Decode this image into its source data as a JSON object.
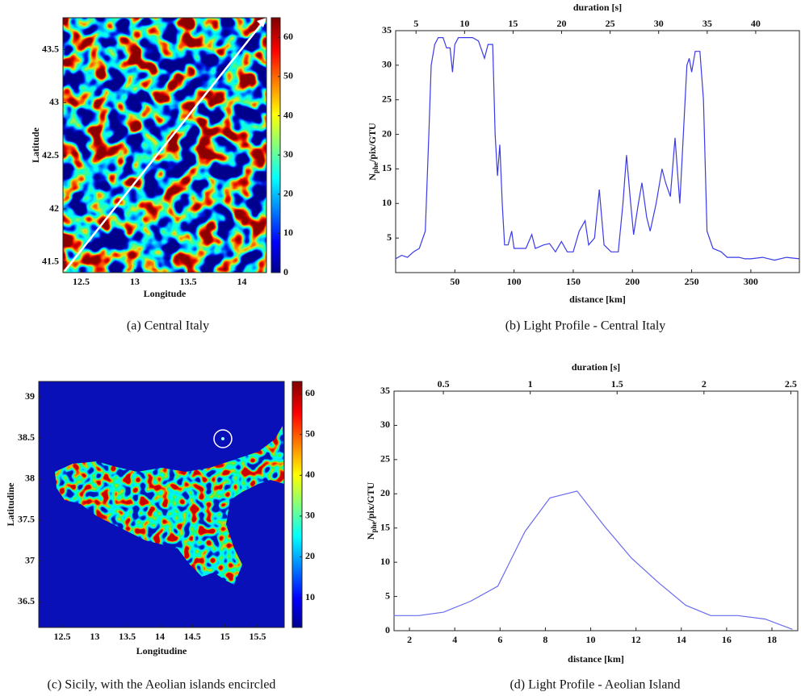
{
  "chart_data": [
    {
      "type": "heatmap",
      "caption": "(a) Central Italy",
      "xlabel": "Longitude",
      "ylabel": "Latitude",
      "xlim": [
        12.33,
        14.23
      ],
      "ylim": [
        41.4,
        43.8
      ],
      "xticks": [
        12.5,
        13,
        13.5,
        14
      ],
      "yticks": [
        41.5,
        42,
        42.5,
        43,
        43.5
      ],
      "clim": [
        0,
        65
      ],
      "cticks": [
        0,
        10,
        20,
        30,
        40,
        50,
        60
      ]
    },
    {
      "type": "line",
      "caption": "(b) Light Profile - Central Italy",
      "xlabel": "distance [km]",
      "ylabel": {
        "base": "N",
        "sub": "phe",
        "rest": "/pix/GTU"
      },
      "x2label": "duration [s]",
      "xlim": [
        0,
        341
      ],
      "ylim": [
        0,
        35
      ],
      "x2lim": [
        2.9,
        44.5
      ],
      "xticks": [
        50,
        100,
        150,
        200,
        250,
        300
      ],
      "yticks": [
        5,
        10,
        15,
        20,
        25,
        30,
        35
      ],
      "x2ticks": [
        5,
        10,
        15,
        20,
        25,
        30,
        35,
        40
      ],
      "color": "#3a3ae8",
      "x": [
        0,
        5,
        10,
        15,
        20,
        25,
        28,
        30,
        33,
        36,
        40,
        43,
        46,
        48,
        50,
        53,
        60,
        65,
        70,
        75,
        78,
        82,
        84,
        86,
        88,
        90,
        92,
        95,
        98,
        100,
        110,
        115,
        118,
        125,
        130,
        135,
        140,
        145,
        150,
        155,
        160,
        163,
        168,
        172,
        176,
        182,
        188,
        192,
        195,
        198,
        201,
        205,
        208,
        212,
        215,
        220,
        225,
        228,
        232,
        236,
        240,
        243,
        246,
        248,
        250,
        253,
        257,
        260,
        263,
        268,
        275,
        280,
        290,
        295,
        300,
        310,
        320,
        330,
        341
      ],
      "values": [
        2,
        2.5,
        2.2,
        3,
        3.5,
        6,
        20,
        30,
        33,
        34,
        34,
        32.5,
        32.5,
        29,
        33,
        34,
        34,
        34,
        33.5,
        31,
        33,
        33,
        20,
        14,
        18.5,
        10,
        4,
        4,
        6,
        3.5,
        3.5,
        5.5,
        3.5,
        4,
        4.2,
        3,
        4.5,
        3,
        3,
        6,
        7.5,
        4,
        5,
        12,
        4,
        3,
        3,
        10,
        17,
        11,
        5.5,
        10,
        13,
        8,
        6,
        10,
        15,
        13,
        11,
        19.5,
        10,
        20,
        30,
        31,
        29,
        32,
        32,
        25,
        6,
        3.5,
        3,
        2.2,
        2.2,
        2,
        2,
        2.2,
        1.8,
        2.2,
        2
      ]
    },
    {
      "type": "heatmap",
      "caption": "(c) Sicily, with the Aeolian islands encircled",
      "xlabel": "Longitudine",
      "ylabel": "Latitudine",
      "xlim": [
        12.14,
        15.91
      ],
      "ylim": [
        36.19,
        39.19
      ],
      "xticks": [
        12.5,
        13,
        13.5,
        14,
        14.5,
        15,
        15.5
      ],
      "yticks": [
        36.5,
        37,
        37.5,
        38,
        38.5,
        39
      ],
      "clim": [
        2.7,
        63
      ],
      "cticks": [
        10,
        20,
        30,
        40,
        50,
        60
      ]
    },
    {
      "type": "line",
      "caption": "(d) Light Profile - Aeolian Island",
      "xlabel": "distance [km]",
      "ylabel": {
        "base": "N",
        "sub": "phe",
        "rest": "/pix/GTU"
      },
      "x2label": "duration [s]",
      "xlim": [
        1.32,
        19.14
      ],
      "ylim": [
        0,
        35
      ],
      "x2lim": [
        0.216,
        2.54
      ],
      "xticks": [
        2,
        4,
        6,
        8,
        10,
        12,
        14,
        16,
        18
      ],
      "yticks": [
        0,
        5,
        10,
        15,
        20,
        25,
        30,
        35
      ],
      "x2ticks": [
        0.5,
        1,
        1.5,
        2,
        2.5
      ],
      "color": "#6a6af0",
      "x": [
        1.3,
        2.4,
        3.5,
        4.7,
        5.9,
        7.1,
        8.2,
        9.4,
        10.6,
        11.8,
        13.0,
        14.2,
        15.3,
        16.5,
        17.7,
        18.9
      ],
      "values": [
        2.2,
        2.2,
        2.7,
        4.3,
        6.5,
        14.5,
        19.4,
        20.4,
        15.3,
        10.6,
        7,
        3.7,
        2.2,
        2.2,
        1.7,
        0.2
      ]
    }
  ]
}
